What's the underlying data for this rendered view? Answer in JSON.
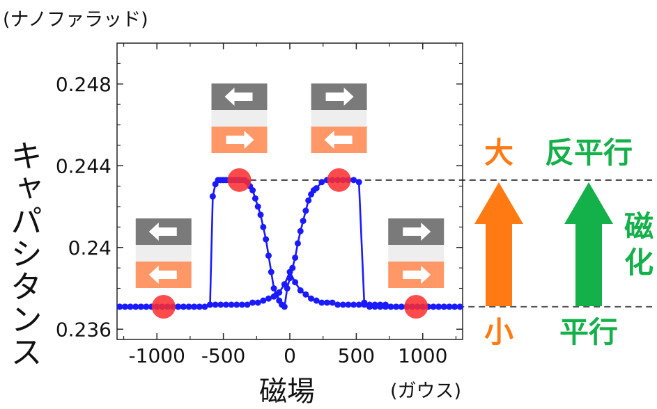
{
  "chart_data": {
    "type": "line",
    "y_unit": "(ナノファラッド)",
    "ylabel": "キャパシタンス",
    "xlabel": "磁場",
    "x_unit": "(ガウス)",
    "xlim": [
      -1300,
      1300
    ],
    "ylim": [
      0.2355,
      0.25
    ],
    "x_ticks": [
      "-1000",
      "-500",
      "0",
      "500",
      "1000"
    ],
    "y_ticks": [
      "0.236",
      "0.24",
      "0.244",
      "0.248"
    ],
    "series": [
      {
        "x": [
          -1320,
          -1280,
          -1240,
          -1200,
          -1160,
          -1120,
          -1080,
          -1040,
          -1000,
          -960,
          -920,
          -880,
          -840,
          -800,
          -760,
          -720,
          -680,
          -640,
          -600,
          -580,
          -560,
          -540,
          -520,
          -500,
          -480,
          -460,
          -440,
          -420,
          -400,
          -380,
          -360,
          -340,
          -320,
          -300,
          -280,
          -260,
          -240,
          -220,
          -200,
          -180,
          -160,
          -140,
          -120,
          -100,
          -80,
          -60,
          -40,
          -20,
          0,
          20,
          40,
          60,
          80,
          100,
          120,
          140,
          160,
          180,
          200,
          240,
          280,
          320,
          360,
          400,
          440,
          480,
          520,
          560,
          600,
          640,
          680,
          720,
          760,
          800,
          840,
          880,
          920,
          960,
          1000,
          1040,
          1080,
          1120,
          1160,
          1200,
          1240,
          1280,
          1320
        ],
        "y": [
          0.2371,
          0.2371,
          0.2371,
          0.2371,
          0.2371,
          0.2371,
          0.2371,
          0.2371,
          0.2371,
          0.2371,
          0.2371,
          0.2371,
          0.2371,
          0.2371,
          0.2371,
          0.2371,
          0.2371,
          0.2371,
          0.2372,
          0.2425,
          0.2431,
          0.2433,
          0.2433,
          0.2433,
          0.2433,
          0.2433,
          0.2433,
          0.2433,
          0.2433,
          0.2433,
          0.2433,
          0.2433,
          0.2432,
          0.243,
          0.2428,
          0.2424,
          0.242,
          0.2416,
          0.241,
          0.2404,
          0.2396,
          0.2388,
          0.238,
          0.2377,
          0.2374,
          0.2372,
          0.2371,
          0.238,
          0.2385,
          0.239,
          0.2395,
          0.2402,
          0.2408,
          0.2413,
          0.2418,
          0.2423,
          0.2426,
          0.2428,
          0.2429,
          0.2432,
          0.2433,
          0.2433,
          0.2433,
          0.2433,
          0.2433,
          0.2433,
          0.2432,
          0.2373,
          0.2372,
          0.2372,
          0.2372,
          0.2372,
          0.2371,
          0.2371,
          0.2371,
          0.2371,
          0.2371,
          0.2371,
          0.2371,
          0.2371,
          0.2371,
          0.2371,
          0.2371,
          0.2371,
          0.2371,
          0.2371,
          0.2371
        ]
      },
      {
        "x": [
          1320,
          1280,
          1240,
          1200,
          1160,
          1120,
          1080,
          1040,
          1000,
          960,
          920,
          880,
          840,
          800,
          760,
          720,
          680,
          640,
          600,
          560,
          520,
          480,
          440,
          400,
          360,
          320,
          280,
          240,
          200,
          160,
          120,
          80,
          40,
          0,
          -40,
          -80,
          -120,
          -160,
          -200,
          -240,
          -280,
          -320,
          -360,
          -400,
          -440,
          -480,
          -520,
          -560,
          -600,
          -640,
          -680,
          -720,
          -760,
          -800,
          -840,
          -880,
          -920,
          -960,
          -1000,
          -1040,
          -1080,
          -1120,
          -1160,
          -1200,
          -1240,
          -1280,
          -1320
        ],
        "y": [
          0.2371,
          0.2371,
          0.2371,
          0.2371,
          0.2371,
          0.2371,
          0.2371,
          0.2371,
          0.2371,
          0.2371,
          0.2371,
          0.2371,
          0.2371,
          0.2371,
          0.2371,
          0.2371,
          0.2371,
          0.2371,
          0.2371,
          0.2372,
          0.2372,
          0.2372,
          0.2372,
          0.2372,
          0.2372,
          0.2373,
          0.2373,
          0.2373,
          0.2374,
          0.2375,
          0.2377,
          0.2379,
          0.2383,
          0.2388,
          0.2382,
          0.2378,
          0.2376,
          0.2375,
          0.2374,
          0.2373,
          0.2373,
          0.2372,
          0.2372,
          0.2372,
          0.2372,
          0.2372,
          0.2372,
          0.2372,
          0.2372,
          0.2371,
          0.2371,
          0.2371,
          0.2371,
          0.2371,
          0.2371,
          0.2371,
          0.2371,
          0.2371,
          0.2371,
          0.2371,
          0.2371,
          0.2371,
          0.2371,
          0.2371,
          0.2371,
          0.2371,
          0.2371
        ]
      }
    ],
    "highlight_points": [
      {
        "x": -950,
        "y": 0.2371
      },
      {
        "x": -380,
        "y": 0.2433
      },
      {
        "x": 370,
        "y": 0.2433
      },
      {
        "x": 950,
        "y": 0.2371
      }
    ],
    "reference_levels": [
      0.2433,
      0.2371
    ],
    "annotations": {
      "high_size": "大",
      "high_state": "反平行",
      "low_size": "小",
      "low_state": "平行",
      "magnetization": "磁化"
    },
    "colors": {
      "line": "#1a1aff",
      "marker": "#1a1aff",
      "highlight": "#ff2b2b",
      "orange": "#ff7a12",
      "green": "#14b04a",
      "top_layer": "#7a7a7a",
      "spacer": "#eeeeee",
      "bottom_layer": "#ff9866",
      "grid_dash": "#555555"
    },
    "layer_icons": [
      {
        "field_x": -950,
        "top": "left",
        "bottom": "left"
      },
      {
        "field_x": -380,
        "top": "left",
        "bottom": "right"
      },
      {
        "field_x": 370,
        "top": "right",
        "bottom": "left"
      },
      {
        "field_x": 950,
        "top": "right",
        "bottom": "right"
      }
    ]
  }
}
